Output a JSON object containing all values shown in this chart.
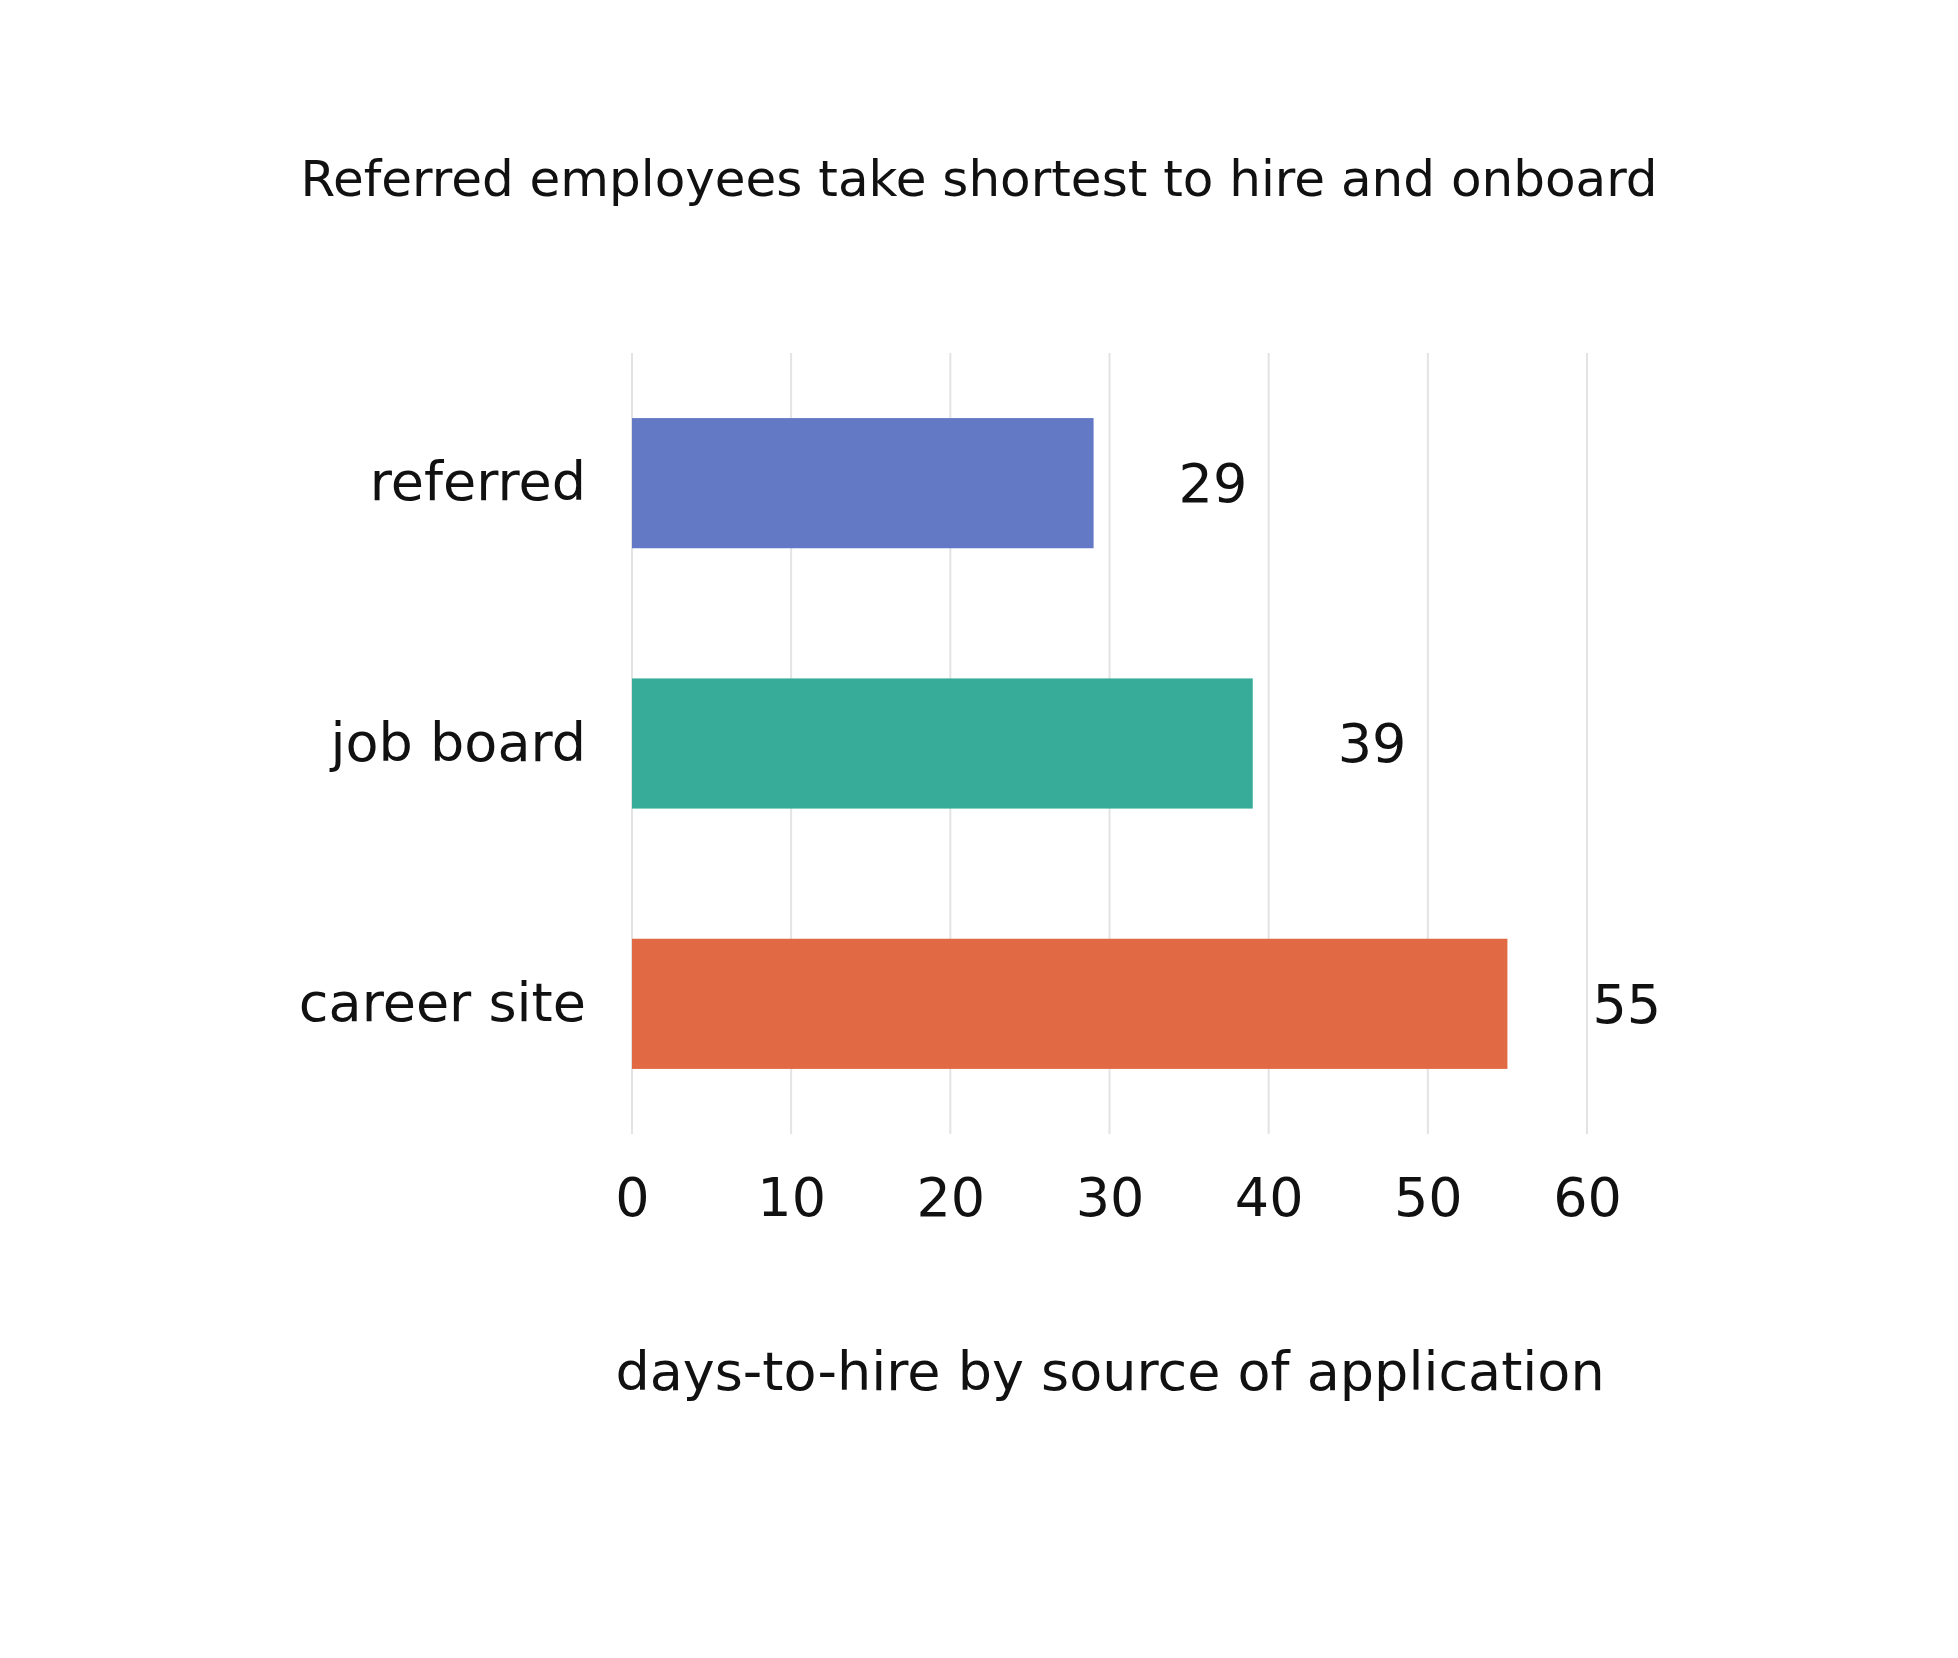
{
  "chart_data": {
    "type": "bar",
    "orientation": "horizontal",
    "title": "Referred employees take shortest to hire and onboard",
    "xlabel": "days-to-hire by source of application",
    "categories": [
      "referred",
      "job board",
      "career site"
    ],
    "values": [
      29,
      39,
      55
    ],
    "colors": [
      "#6479c5",
      "#37ad99",
      "#e16a44"
    ],
    "xlim": [
      0,
      60
    ],
    "xticks": [
      0,
      10,
      20,
      30,
      40,
      50,
      60
    ],
    "grid": "x",
    "data_labels": true
  }
}
